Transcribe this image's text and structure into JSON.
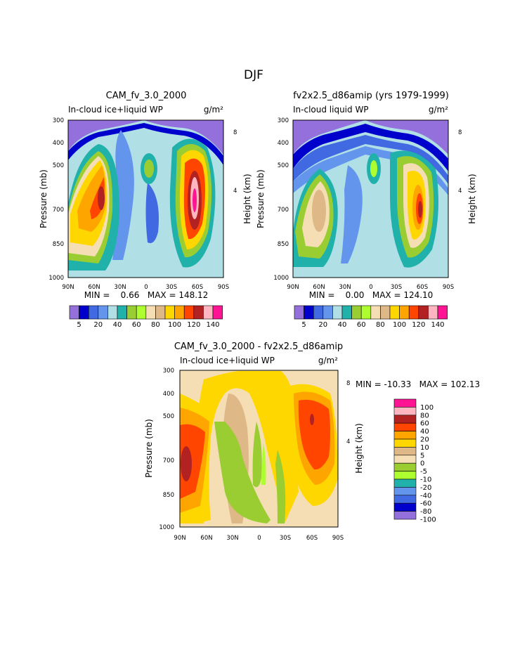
{
  "page_title": "DJF",
  "chart_data": [
    {
      "type": "heatmap",
      "title": "CAM_fv_3.0_2000",
      "subtitle_left": "In-cloud ice+liquid WP",
      "units": "g/m²",
      "xlabel": "",
      "ylabel": "Pressure (mb)",
      "ylabel_right": "Height (km)",
      "x_ticks": [
        "90N",
        "60N",
        "30N",
        "0",
        "30S",
        "60S",
        "90S"
      ],
      "y_ticks": [
        "300",
        "400",
        "500",
        "700",
        "850",
        "1000"
      ],
      "y_right_ticks": [
        "8",
        "4"
      ],
      "minmax": "MIN =    0.66   MAX = 148.12",
      "colorbar": {
        "orientation": "horizontal",
        "labels": [
          "5",
          "20",
          "40",
          "60",
          "80",
          "100",
          "120",
          "140"
        ]
      }
    },
    {
      "type": "heatmap",
      "title": "fv2x2.5_d86amip (yrs 1979-1999)",
      "subtitle_left": "In-cloud liquid WP",
      "units": "g/m²",
      "xlabel": "",
      "ylabel": "Pressure (mb)",
      "ylabel_right": "Height (km)",
      "x_ticks": [
        "90N",
        "60N",
        "30N",
        "0",
        "30S",
        "60S",
        "90S"
      ],
      "y_ticks": [
        "300",
        "400",
        "500",
        "700",
        "850",
        "1000"
      ],
      "y_right_ticks": [
        "8",
        "4"
      ],
      "minmax": "MIN =    0.00   MAX = 124.10",
      "colorbar": {
        "orientation": "horizontal",
        "labels": [
          "5",
          "20",
          "40",
          "60",
          "80",
          "100",
          "120",
          "140"
        ]
      }
    },
    {
      "type": "heatmap",
      "title": "CAM_fv_3.0_2000 - fv2x2.5_d86amip",
      "subtitle_left": "In-cloud ice+liquid WP",
      "units": "g/m²",
      "xlabel": "",
      "ylabel": "Pressure (mb)",
      "ylabel_right": "Height (km)",
      "x_ticks": [
        "90N",
        "60N",
        "30N",
        "0",
        "30S",
        "60S",
        "90S"
      ],
      "y_ticks": [
        "300",
        "400",
        "500",
        "700",
        "850",
        "1000"
      ],
      "y_right_ticks": [
        "8",
        "4"
      ],
      "minmax": "MIN = -10.33   MAX = 102.13",
      "colorbar": {
        "orientation": "vertical",
        "labels": [
          "100",
          "80",
          "60",
          "40",
          "20",
          "10",
          "5",
          "0",
          "-5",
          "-10",
          "-20",
          "-40",
          "-60",
          "-80",
          "-100"
        ]
      }
    }
  ],
  "colors": {
    "abs_scale": [
      "#9370db",
      "#0000cd",
      "#4169e1",
      "#6495ed",
      "#b0e0e6",
      "#20b2aa",
      "#9acd32",
      "#adff2f",
      "#f5deb3",
      "#deb887",
      "#ffd700",
      "#ffa500",
      "#ff4500",
      "#b22222",
      "#ffb6c1",
      "#ff1493"
    ],
    "diff_scale": [
      "#ff1493",
      "#ffb6c1",
      "#b22222",
      "#ff4500",
      "#ffa500",
      "#ffd700",
      "#deb887",
      "#f5deb3",
      "#9acd32",
      "#adff2f",
      "#20b2aa",
      "#6495ed",
      "#4169e1",
      "#0000cd",
      "#9370db"
    ]
  }
}
